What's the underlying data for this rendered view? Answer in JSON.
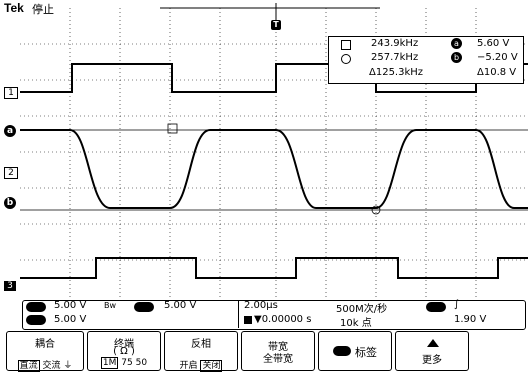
{
  "header": {
    "brand": "Tek",
    "status": "停止"
  },
  "trigger_marker": "T",
  "channel_markers": [
    "1",
    "a",
    "2",
    "b",
    "3"
  ],
  "cursor_readout": {
    "a_freq": "243.9kHz",
    "a_value": "5.60 V",
    "b_freq": "257.7kHz",
    "b_value": "−5.20 V",
    "delta_freq": "Δ125.3kHz",
    "delta_value": "Δ10.8 V",
    "a_label": "a",
    "b_label": "b"
  },
  "status_bar": {
    "ch1_scale": "5.00 V",
    "bw_symbol": "Bw",
    "ch2_scale": "5.00 V",
    "ch3_scale": "5.00 V",
    "timebase": "2.00µs",
    "trigger_offset": "▼0.00000 s",
    "sample_rate": "500M次/秒",
    "record_length": "10k 点",
    "trigger_edge": "∫",
    "trigger_level": "1.90 V"
  },
  "menu": {
    "coupling": {
      "title": "耦合",
      "opt1": "直流",
      "opt2": "交流",
      "opt3": "⏚"
    },
    "termination": {
      "title": "终端",
      "subtitle": "( Ω )",
      "opt1": "1M",
      "opt2": "75",
      "opt3": "50"
    },
    "invert": {
      "title": "反相",
      "opt1": "开启",
      "opt2": "关闭"
    },
    "bandwidth": {
      "title": "带宽",
      "subtitle": "全带宽"
    },
    "label": {
      "title": "标签"
    },
    "more": {
      "title": "更多"
    }
  }
}
